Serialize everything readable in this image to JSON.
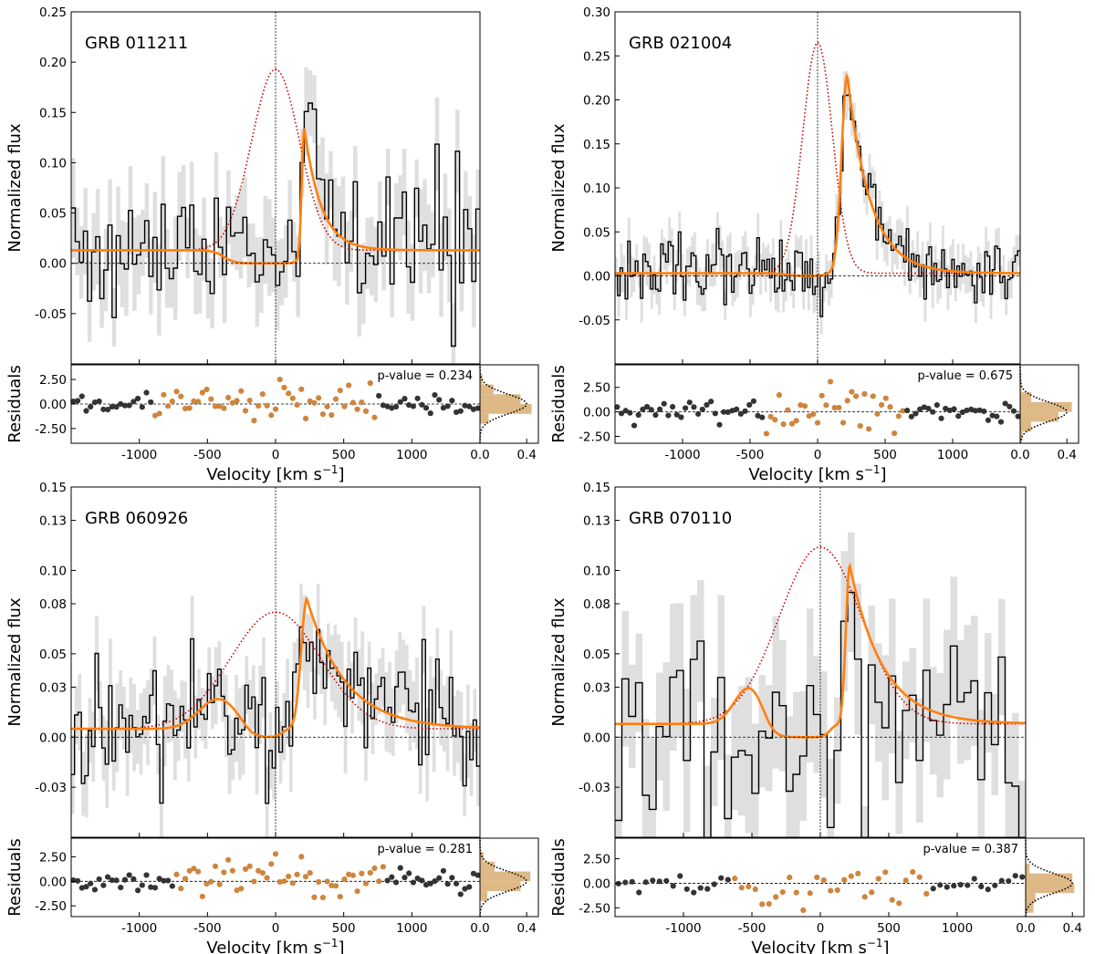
{
  "figure": {
    "xlabel": "Velocity [km s$^{-1}$]",
    "xlabel_main": "Velocity [km s",
    "xlabel_sup": "−1",
    "xlabel_end": "]",
    "ylabel_top": "Normalized flux",
    "ylabel_bottom": "Residuals"
  },
  "colors": {
    "data_line": "#000000",
    "error_band": "#d9d9d9",
    "model_line": "#ff7f0e",
    "intrinsic_line": "#cc0000",
    "residual_fit": "#cd853f",
    "residual_out": "#333333",
    "hist_fill": "#deb887"
  },
  "chart_data": [
    {
      "type": "line",
      "title": "GRB 011211",
      "xlim": [
        -1500,
        1500
      ],
      "ylim": [
        -0.1,
        0.25
      ],
      "yticks": [
        -0.05,
        0.0,
        0.05,
        0.1,
        0.15,
        0.2,
        0.25
      ],
      "ytick_labels": [
        "-0.05",
        "0.00",
        "0.05",
        "0.10",
        "0.15",
        "0.20",
        "0.25"
      ],
      "xticks": [
        -1000,
        -500,
        0,
        500,
        1000
      ],
      "xtick_labels": [
        "-1000",
        "-500",
        "0",
        "500",
        "1000"
      ],
      "continuum": 0.013,
      "seed": 11,
      "nbins": 100,
      "noise": 0.04,
      "absorb": {
        "center": -50,
        "width": 330,
        "depth": 1.0,
        "edge": 190
      },
      "emission": {
        "amp": 0.18,
        "center": 0,
        "sigma": 175,
        "skew": 0
      },
      "model_peak": {
        "center": 210,
        "amp": 0.125,
        "rise": 25,
        "decay": 120
      },
      "p_value": "p-value = 0.234",
      "residuals": {
        "ylim": [
          -4,
          4
        ],
        "yticks": [
          -2.5,
          0.0,
          2.5
        ],
        "ytick_labels": [
          "-2.50",
          "0.00",
          "2.50"
        ],
        "fit_range": [
          -900,
          750
        ],
        "spread": 0.9
      },
      "hist": {
        "xlim": [
          0,
          0.5
        ],
        "xticks": [
          0,
          0.4
        ],
        "xtick_labels": [
          "0.0",
          "0.4"
        ]
      }
    },
    {
      "type": "line",
      "title": "GRB 021004",
      "xlim": [
        -1500,
        1500
      ],
      "ylim": [
        -0.1,
        0.3
      ],
      "yticks": [
        -0.05,
        0.0,
        0.05,
        0.1,
        0.15,
        0.2,
        0.25,
        0.3
      ],
      "ytick_labels": [
        "-0.05",
        "0.00",
        "0.05",
        "0.10",
        "0.15",
        "0.20",
        "0.25",
        "0.30"
      ],
      "xticks": [
        -1000,
        -500,
        0,
        500,
        1000
      ],
      "xtick_labels": [
        "-1000",
        "-500",
        "0",
        "500",
        "1000"
      ],
      "continuum": 0.003,
      "seed": 21,
      "nbins": 160,
      "noise": 0.022,
      "absorb": {
        "center": -80,
        "width": 160,
        "depth": 1.0,
        "edge": 60
      },
      "emission": {
        "amp": 0.262,
        "center": 0,
        "sigma": 110,
        "skew": 0
      },
      "model_peak": {
        "center": 220,
        "amp": 0.225,
        "rise": 60,
        "decay": 170
      },
      "p_value": "p-value = 0.675",
      "residuals": {
        "ylim": [
          -3.2,
          4.8
        ],
        "yticks": [
          -2.5,
          0.0,
          2.5
        ],
        "ytick_labels": [
          "-2.50",
          "0.00",
          "2.50"
        ],
        "fit_range": [
          -400,
          650
        ],
        "spread": 1.3
      },
      "hist": {
        "xlim": [
          0,
          0.5
        ],
        "xticks": [
          0,
          0.4
        ],
        "xtick_labels": [
          "0.0",
          "0.4"
        ]
      }
    },
    {
      "type": "line",
      "title": "GRB 060926",
      "xlim": [
        -1500,
        1500
      ],
      "ylim": [
        -0.06,
        0.15
      ],
      "yticks": [
        -0.03,
        0.0,
        0.03,
        0.05,
        0.08,
        0.1,
        0.13,
        0.15
      ],
      "ytick_labels": [
        "-0.03",
        "0.00",
        "0.03",
        "0.05",
        "0.08",
        "0.10",
        "0.13",
        "0.15"
      ],
      "xticks": [
        -1000,
        -500,
        0,
        500,
        1000
      ],
      "xtick_labels": [
        "-1000",
        "-500",
        "0",
        "500",
        "1000"
      ],
      "continuum": 0.005,
      "seed": 31,
      "nbins": 120,
      "noise": 0.022,
      "absorb": {
        "center": -90,
        "width": 110,
        "depth": 1.0,
        "edge": 45
      },
      "emission": {
        "amp": 0.07,
        "center": 0,
        "sigma": 330,
        "skew": 0
      },
      "model_peak": {
        "center": 230,
        "amp": 0.078,
        "rise": 60,
        "decay": 280
      },
      "side_bump": {
        "center": -420,
        "amp": 0.018,
        "sigma": 200
      },
      "p_value": "p-value = 0.281",
      "residuals": {
        "ylim": [
          -3.6,
          4.4
        ],
        "yticks": [
          -2.5,
          0.0,
          2.5
        ],
        "ytick_labels": [
          "-2.50",
          "0.00",
          "2.50"
        ],
        "fit_range": [
          -750,
          800
        ],
        "spread": 1.1
      },
      "hist": {
        "xlim": [
          0,
          0.5
        ],
        "xticks": [
          0,
          0.4
        ],
        "xtick_labels": [
          "0.0",
          "0.4"
        ]
      }
    },
    {
      "type": "line",
      "title": "GRB 070110",
      "xlim": [
        -1500,
        1500
      ],
      "ylim": [
        -0.06,
        0.15
      ],
      "yticks": [
        -0.03,
        0.0,
        0.03,
        0.05,
        0.08,
        0.1,
        0.13,
        0.15
      ],
      "ytick_labels": [
        "-0.03",
        "0.00",
        "0.03",
        "0.05",
        "0.08",
        "0.10",
        "0.13",
        "0.15"
      ],
      "xticks": [
        -1000,
        -500,
        0,
        500,
        1000
      ],
      "xtick_labels": [
        "-1000",
        "-500",
        "0",
        "500",
        "1000"
      ],
      "continuum": 0.008,
      "seed": 41,
      "nbins": 60,
      "noise": 0.038,
      "absorb": {
        "center": -180,
        "width": 190,
        "depth": 1.0,
        "edge": 70
      },
      "emission": {
        "amp": 0.106,
        "center": 0,
        "sigma": 300,
        "skew": 0
      },
      "model_peak": {
        "center": 215,
        "amp": 0.095,
        "rise": 40,
        "decay": 240
      },
      "side_bump": {
        "center": -520,
        "amp": 0.022,
        "sigma": 150
      },
      "p_value": "p-value = 0.387",
      "residuals": {
        "ylim": [
          -3.4,
          4.6
        ],
        "yticks": [
          -2.5,
          0.0,
          2.5
        ],
        "ytick_labels": [
          "-2.50",
          "0.00",
          "2.50"
        ],
        "fit_range": [
          -650,
          800
        ],
        "spread": 1.1
      },
      "hist": {
        "xlim": [
          0,
          0.5
        ],
        "xticks": [
          0,
          0.4
        ],
        "xtick_labels": [
          "0.0",
          "0.4"
        ]
      }
    }
  ]
}
